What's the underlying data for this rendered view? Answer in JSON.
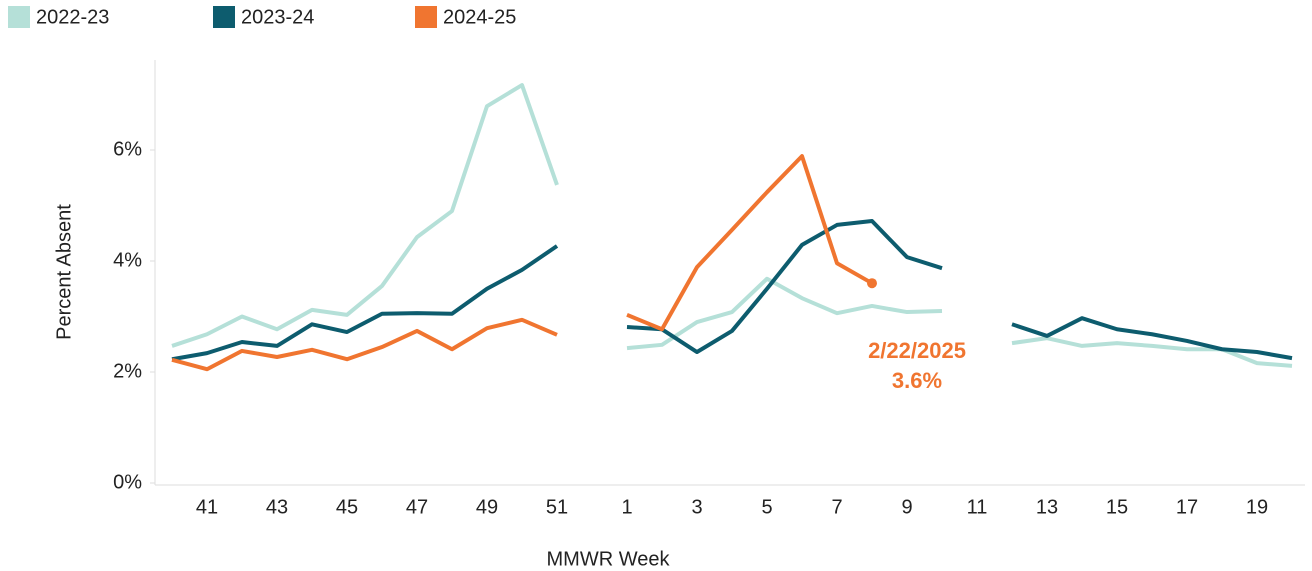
{
  "chart_data": {
    "type": "line",
    "xlabel": "MMWR Week",
    "ylabel": "Percent Absent",
    "categories": [
      null,
      41,
      null,
      43,
      null,
      45,
      null,
      47,
      null,
      49,
      null,
      51,
      null,
      1,
      null,
      3,
      null,
      5,
      null,
      7,
      null,
      9,
      null,
      11,
      null,
      13,
      null,
      15,
      null,
      17,
      null,
      19,
      null
    ],
    "ylim": [
      0,
      7.6
    ],
    "yticks": [
      {
        "value": 0,
        "label": "0%"
      },
      {
        "value": 2,
        "label": "2%"
      },
      {
        "value": 4,
        "label": "4%"
      },
      {
        "value": 6,
        "label": "6%"
      }
    ],
    "grid": false,
    "legend": "top-left",
    "series": [
      {
        "name": "2022-23",
        "color": "#b5e0d8",
        "values": [
          2.47,
          2.68,
          3.0,
          2.77,
          3.12,
          3.03,
          3.55,
          4.43,
          4.9,
          6.79,
          7.17,
          5.37,
          null,
          2.43,
          2.49,
          2.9,
          3.08,
          3.68,
          3.33,
          3.06,
          3.19,
          3.08,
          3.1,
          null,
          2.52,
          2.61,
          2.47,
          2.52,
          2.47,
          2.41,
          2.41,
          2.16,
          2.11
        ]
      },
      {
        "name": "2023-24",
        "color": "#0d5c6e",
        "values": [
          2.23,
          2.34,
          2.54,
          2.47,
          2.86,
          2.72,
          3.05,
          3.06,
          3.05,
          3.5,
          3.84,
          4.27,
          null,
          2.81,
          2.77,
          2.36,
          2.74,
          3.5,
          4.29,
          4.65,
          4.72,
          4.07,
          3.87,
          null,
          2.86,
          2.65,
          2.97,
          2.77,
          2.68,
          2.56,
          2.41,
          2.36,
          2.25
        ]
      },
      {
        "name": "2024-25",
        "color": "#f07530",
        "values": [
          2.22,
          2.05,
          2.38,
          2.27,
          2.4,
          2.23,
          2.45,
          2.74,
          2.41,
          2.79,
          2.94,
          2.67,
          null,
          3.03,
          2.77,
          3.89,
          4.56,
          5.24,
          5.89,
          3.96,
          3.6,
          null,
          null,
          null,
          null,
          null,
          null,
          null,
          null,
          null,
          null,
          null,
          null
        ],
        "value_labels": [
          null,
          null,
          null,
          null,
          null,
          null,
          null,
          null,
          null,
          null,
          null,
          null,
          null,
          null,
          null,
          null,
          null,
          null,
          null,
          null,
          "3.6%",
          null,
          null,
          null,
          null,
          null,
          null,
          null,
          null,
          null,
          null,
          null,
          null
        ]
      }
    ],
    "annotations": [
      {
        "text": "2/22/2025"
      }
    ]
  }
}
